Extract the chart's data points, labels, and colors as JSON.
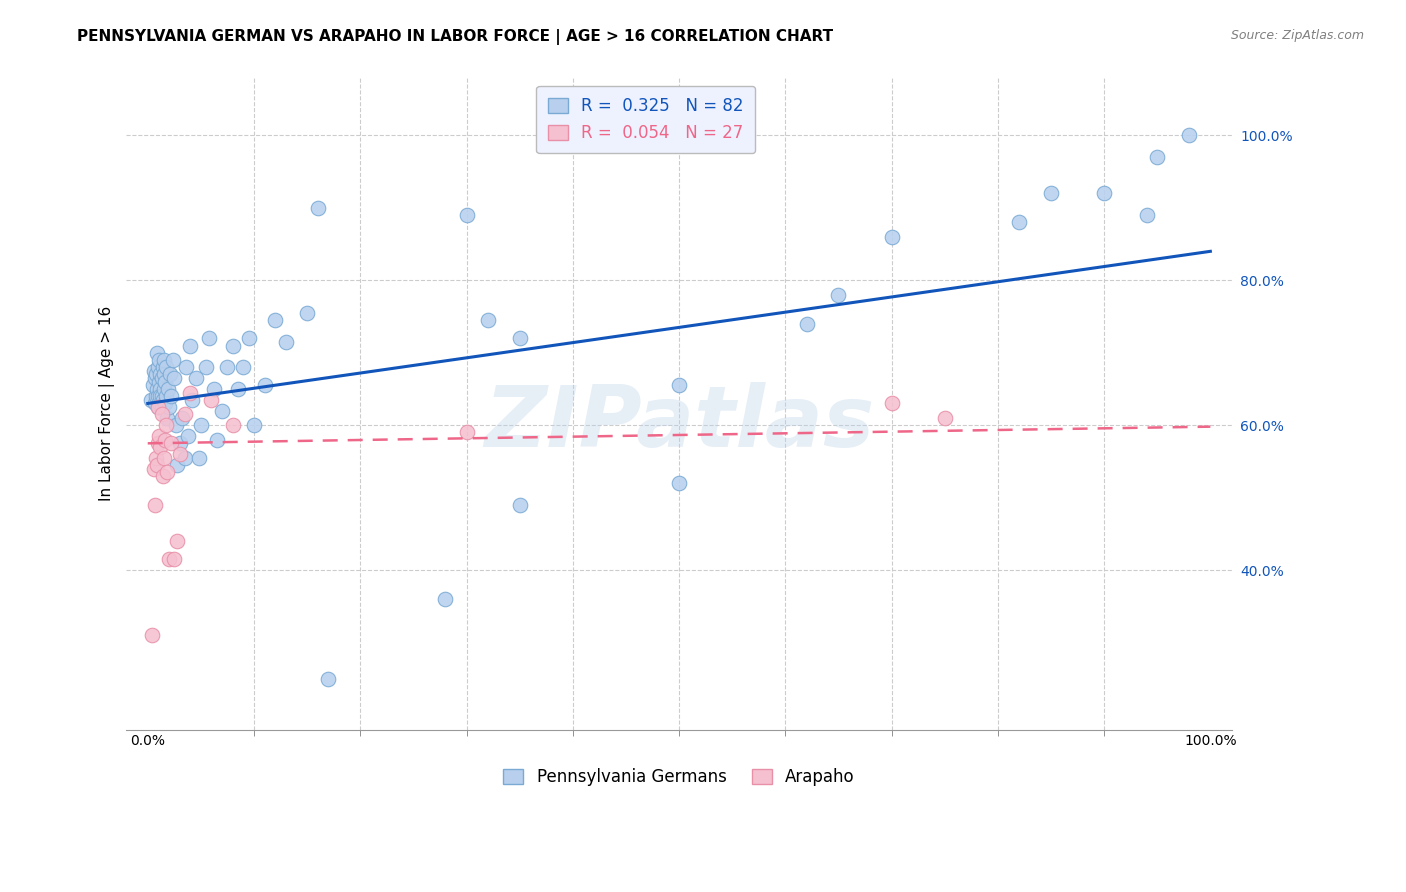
{
  "title": "PENNSYLVANIA GERMAN VS ARAPAHO IN LABOR FORCE | AGE > 16 CORRELATION CHART",
  "source": "Source: ZipAtlas.com",
  "ylabel": "In Labor Force | Age > 16",
  "xlim": [
    -0.02,
    1.02
  ],
  "ylim": [
    0.18,
    1.08
  ],
  "blue_R": 0.325,
  "blue_N": 82,
  "pink_R": 0.054,
  "pink_N": 27,
  "blue_scatter_color": "#b8d0ee",
  "blue_scatter_edge": "#7aaad4",
  "pink_scatter_color": "#f5c0d0",
  "pink_scatter_edge": "#e890a8",
  "blue_line_color": "#1155bb",
  "pink_line_color": "#ee6688",
  "watermark": "ZIPatlas",
  "background_color": "#ffffff",
  "legend_box_color": "#eef2ff",
  "grid_color": "#cccccc",
  "title_fontsize": 11,
  "axis_label_fontsize": 11,
  "tick_fontsize": 10,
  "legend_fontsize": 12,
  "ytick_positions": [
    0.4,
    0.6,
    0.8,
    1.0
  ],
  "ytick_labels": [
    "40.0%",
    "60.0%",
    "80.0%",
    "100.0%"
  ],
  "xtick_minor_positions": [
    0.1,
    0.2,
    0.3,
    0.4,
    0.5,
    0.6,
    0.7,
    0.8,
    0.9
  ],
  "blue_line_x0": 0.0,
  "blue_line_y0": 0.63,
  "blue_line_x1": 1.0,
  "blue_line_y1": 0.84,
  "pink_line_x0": 0.0,
  "pink_line_y0": 0.575,
  "pink_line_x1": 1.0,
  "pink_line_y1": 0.598,
  "blue_points_x": [
    0.003,
    0.005,
    0.006,
    0.007,
    0.007,
    0.008,
    0.008,
    0.009,
    0.009,
    0.01,
    0.01,
    0.01,
    0.011,
    0.011,
    0.011,
    0.012,
    0.012,
    0.012,
    0.013,
    0.013,
    0.013,
    0.014,
    0.014,
    0.015,
    0.015,
    0.015,
    0.016,
    0.016,
    0.017,
    0.017,
    0.018,
    0.019,
    0.02,
    0.021,
    0.022,
    0.024,
    0.025,
    0.027,
    0.028,
    0.03,
    0.032,
    0.035,
    0.036,
    0.038,
    0.04,
    0.042,
    0.045,
    0.048,
    0.05,
    0.055,
    0.058,
    0.062,
    0.065,
    0.07,
    0.075,
    0.08,
    0.085,
    0.09,
    0.095,
    0.1,
    0.11,
    0.12,
    0.13,
    0.15,
    0.16,
    0.17,
    0.28,
    0.3,
    0.32,
    0.35,
    0.5,
    0.62,
    0.65,
    0.7,
    0.82,
    0.85,
    0.9,
    0.94,
    0.95,
    0.98,
    0.35,
    0.5
  ],
  "blue_points_y": [
    0.635,
    0.655,
    0.675,
    0.665,
    0.63,
    0.64,
    0.67,
    0.7,
    0.65,
    0.68,
    0.625,
    0.64,
    0.66,
    0.69,
    0.63,
    0.65,
    0.67,
    0.64,
    0.665,
    0.625,
    0.64,
    0.68,
    0.635,
    0.67,
    0.65,
    0.69,
    0.63,
    0.66,
    0.64,
    0.68,
    0.61,
    0.65,
    0.625,
    0.67,
    0.64,
    0.69,
    0.665,
    0.6,
    0.545,
    0.575,
    0.61,
    0.555,
    0.68,
    0.585,
    0.71,
    0.635,
    0.665,
    0.555,
    0.6,
    0.68,
    0.72,
    0.65,
    0.58,
    0.62,
    0.68,
    0.71,
    0.65,
    0.68,
    0.72,
    0.6,
    0.655,
    0.745,
    0.715,
    0.755,
    0.9,
    0.25,
    0.36,
    0.89,
    0.745,
    0.72,
    0.655,
    0.74,
    0.78,
    0.86,
    0.88,
    0.92,
    0.92,
    0.89,
    0.97,
    1.0,
    0.49,
    0.52
  ],
  "pink_points_x": [
    0.004,
    0.006,
    0.007,
    0.008,
    0.009,
    0.01,
    0.01,
    0.011,
    0.012,
    0.013,
    0.014,
    0.015,
    0.016,
    0.017,
    0.018,
    0.02,
    0.022,
    0.025,
    0.028,
    0.03,
    0.035,
    0.04,
    0.06,
    0.08,
    0.3,
    0.7,
    0.75
  ],
  "pink_points_y": [
    0.31,
    0.54,
    0.49,
    0.555,
    0.545,
    0.575,
    0.625,
    0.585,
    0.57,
    0.615,
    0.53,
    0.555,
    0.58,
    0.6,
    0.535,
    0.415,
    0.575,
    0.415,
    0.44,
    0.56,
    0.615,
    0.645,
    0.635,
    0.6,
    0.59,
    0.63,
    0.61
  ]
}
